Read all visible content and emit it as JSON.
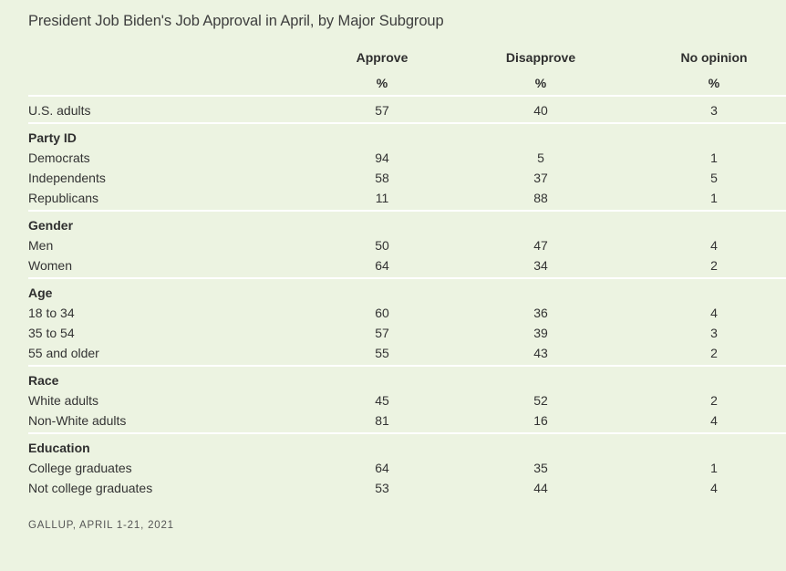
{
  "title": "President Job Biden's Job Approval in April, by Major Subgroup",
  "columns": {
    "approve": "Approve",
    "disapprove": "Disapprove",
    "no_opinion": "No opinion",
    "unit": "%"
  },
  "rows": {
    "us_adults": {
      "label": "U.S. adults",
      "approve": "57",
      "disapprove": "40",
      "no_opinion": "3"
    },
    "party_header": "Party ID",
    "democrats": {
      "label": "Democrats",
      "approve": "94",
      "disapprove": "5",
      "no_opinion": "1"
    },
    "independents": {
      "label": "Independents",
      "approve": "58",
      "disapprove": "37",
      "no_opinion": "5"
    },
    "republicans": {
      "label": "Republicans",
      "approve": "11",
      "disapprove": "88",
      "no_opinion": "1"
    },
    "gender_header": "Gender",
    "men": {
      "label": "Men",
      "approve": "50",
      "disapprove": "47",
      "no_opinion": "4"
    },
    "women": {
      "label": "Women",
      "approve": "64",
      "disapprove": "34",
      "no_opinion": "2"
    },
    "age_header": "Age",
    "age_18_34": {
      "label": "18 to 34",
      "approve": "60",
      "disapprove": "36",
      "no_opinion": "4"
    },
    "age_35_54": {
      "label": "35 to 54",
      "approve": "57",
      "disapprove": "39",
      "no_opinion": "3"
    },
    "age_55_plus": {
      "label": "55 and older",
      "approve": "55",
      "disapprove": "43",
      "no_opinion": "2"
    },
    "race_header": "Race",
    "white": {
      "label": "White adults",
      "approve": "45",
      "disapprove": "52",
      "no_opinion": "2"
    },
    "nonwhite": {
      "label": "Non-White adults",
      "approve": "81",
      "disapprove": "16",
      "no_opinion": "4"
    },
    "education_header": "Education",
    "college": {
      "label": "College graduates",
      "approve": "64",
      "disapprove": "35",
      "no_opinion": "1"
    },
    "not_college": {
      "label": "Not college graduates",
      "approve": "53",
      "disapprove": "44",
      "no_opinion": "4"
    }
  },
  "footer": "GALLUP, APRIL 1-21, 2021"
}
